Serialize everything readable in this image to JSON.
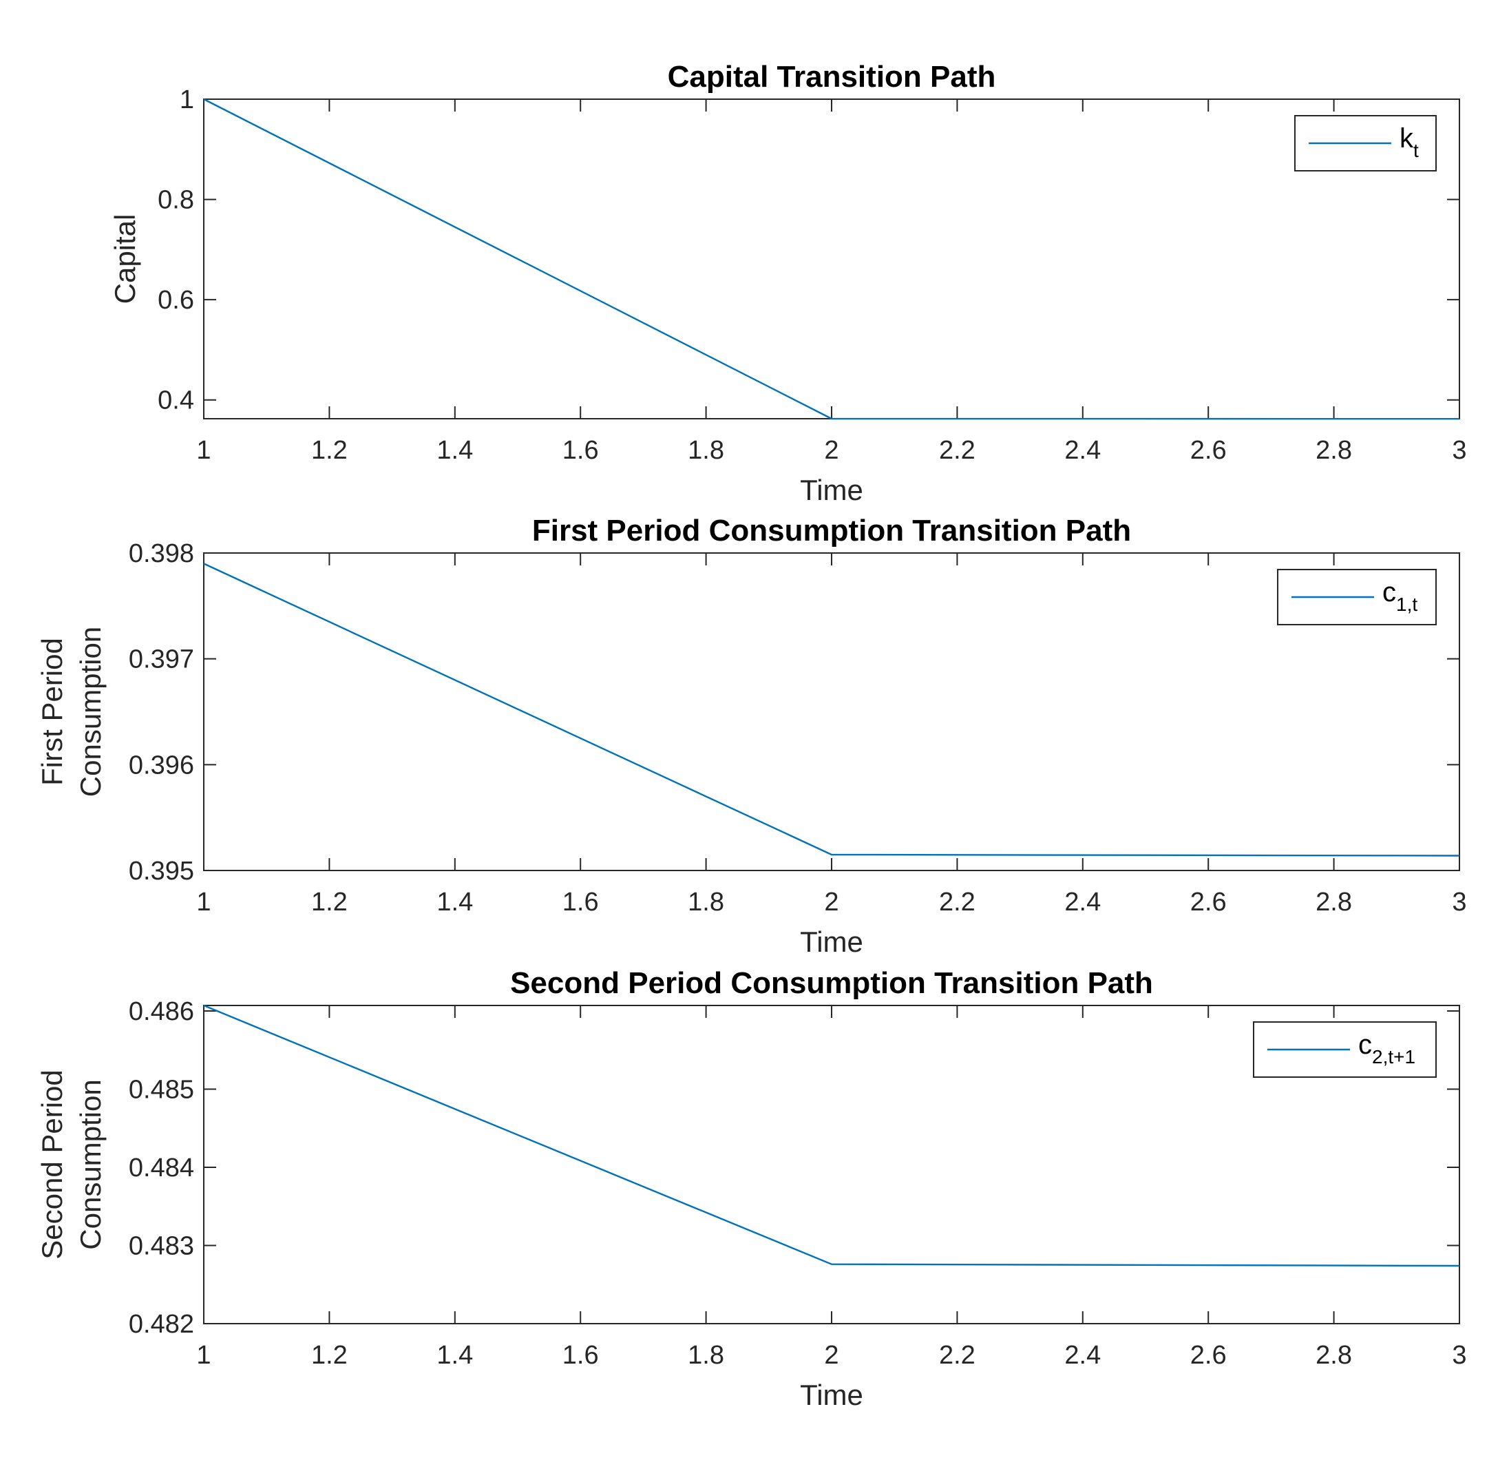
{
  "chart_data": [
    {
      "type": "line",
      "title": "Capital Transition Path",
      "xlabel": "Time",
      "ylabel_lines": [
        "Capital"
      ],
      "xlim": [
        1,
        3
      ],
      "ylim": [
        0.3625,
        1
      ],
      "xticks": [
        1,
        1.2,
        1.4,
        1.6,
        1.8,
        2,
        2.2,
        2.4,
        2.6,
        2.8,
        3
      ],
      "xtick_labels": [
        "1",
        "1.2",
        "1.4",
        "1.6",
        "1.8",
        "2",
        "2.2",
        "2.4",
        "2.6",
        "2.8",
        "3"
      ],
      "yticks": [
        0.4,
        0.6,
        0.8,
        1
      ],
      "ytick_labels": [
        "0.4",
        "0.6",
        "0.8",
        "1"
      ],
      "legend_placement": "top-right",
      "series": [
        {
          "legend_base": "k",
          "legend_sub": "t",
          "color": "#0072BD",
          "x": [
            1,
            2,
            3
          ],
          "y": [
            1.0,
            0.3625,
            0.3622
          ]
        }
      ]
    },
    {
      "type": "line",
      "title": "First Period Consumption Transition Path",
      "xlabel": "Time",
      "ylabel_lines": [
        "First Period",
        "Consumption"
      ],
      "xlim": [
        1,
        3
      ],
      "ylim": [
        0.395,
        0.398
      ],
      "xticks": [
        1,
        1.2,
        1.4,
        1.6,
        1.8,
        2,
        2.2,
        2.4,
        2.6,
        2.8,
        3
      ],
      "xtick_labels": [
        "1",
        "1.2",
        "1.4",
        "1.6",
        "1.8",
        "2",
        "2.2",
        "2.4",
        "2.6",
        "2.8",
        "3"
      ],
      "yticks": [
        0.395,
        0.396,
        0.397,
        0.398
      ],
      "ytick_labels": [
        "0.395",
        "0.396",
        "0.397",
        "0.398"
      ],
      "legend_placement": "top-right",
      "series": [
        {
          "legend_base": "c",
          "legend_sub": "1,t",
          "color": "#0072BD",
          "x": [
            1,
            2,
            3
          ],
          "y": [
            0.3979,
            0.39515,
            0.39514
          ]
        }
      ]
    },
    {
      "type": "line",
      "title": "Second Period Consumption Transition Path",
      "xlabel": "Time",
      "ylabel_lines": [
        "Second Period",
        "Consumption"
      ],
      "xlim": [
        1,
        3
      ],
      "ylim": [
        0.482,
        0.48607
      ],
      "xticks": [
        1,
        1.2,
        1.4,
        1.6,
        1.8,
        2,
        2.2,
        2.4,
        2.6,
        2.8,
        3
      ],
      "xtick_labels": [
        "1",
        "1.2",
        "1.4",
        "1.6",
        "1.8",
        "2",
        "2.2",
        "2.4",
        "2.6",
        "2.8",
        "3"
      ],
      "yticks": [
        0.482,
        0.483,
        0.484,
        0.485,
        0.486
      ],
      "ytick_labels": [
        "0.482",
        "0.483",
        "0.484",
        "0.485",
        "0.486"
      ],
      "legend_placement": "top-right",
      "series": [
        {
          "legend_base": "c",
          "legend_sub": "2,t+1",
          "color": "#0072BD",
          "x": [
            1,
            2,
            3
          ],
          "y": [
            0.48607,
            0.48276,
            0.48274
          ]
        }
      ]
    }
  ]
}
